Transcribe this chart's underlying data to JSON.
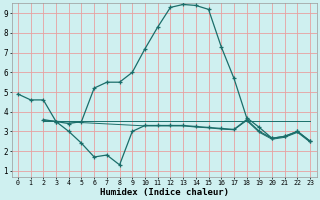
{
  "background_color": "#cff0f0",
  "grid_color": "#e8a0a0",
  "line_color": "#1a6e6a",
  "xlabel": "Humidex (Indice chaleur)",
  "xlim": [
    -0.5,
    23.5
  ],
  "ylim": [
    0.7,
    9.5
  ],
  "yticks": [
    1,
    2,
    3,
    4,
    5,
    6,
    7,
    8,
    9
  ],
  "xticks": [
    0,
    1,
    2,
    3,
    4,
    5,
    6,
    7,
    8,
    9,
    10,
    11,
    12,
    13,
    14,
    15,
    16,
    17,
    18,
    19,
    20,
    21,
    22,
    23
  ],
  "line1_x": [
    0,
    1,
    2,
    3,
    4,
    5,
    6,
    7,
    8,
    9,
    10,
    11,
    12,
    13,
    14,
    15,
    16,
    17,
    18,
    19,
    20,
    21,
    22,
    23
  ],
  "line1_y": [
    4.9,
    4.6,
    4.6,
    3.5,
    3.4,
    3.5,
    5.2,
    5.5,
    5.5,
    6.0,
    7.2,
    8.3,
    9.3,
    9.45,
    9.4,
    9.2,
    7.3,
    5.7,
    3.7,
    3.2,
    2.65,
    2.75,
    3.0,
    2.5
  ],
  "line2_x": [
    2,
    3,
    4,
    5,
    6,
    7,
    8,
    9,
    10,
    11,
    12,
    13,
    14,
    15,
    16,
    17,
    18,
    19,
    20,
    21,
    22,
    23
  ],
  "line2_y": [
    3.6,
    3.5,
    3.0,
    2.4,
    1.7,
    1.8,
    1.3,
    3.0,
    3.3,
    3.3,
    3.3,
    3.3,
    3.25,
    3.2,
    3.15,
    3.1,
    3.6,
    3.0,
    2.65,
    2.75,
    3.0,
    2.5
  ],
  "line3_x": [
    2,
    10,
    11,
    12,
    13,
    14,
    15,
    16,
    17,
    18,
    19,
    20,
    21,
    22,
    23
  ],
  "line3_y": [
    3.55,
    3.28,
    3.28,
    3.28,
    3.28,
    3.22,
    3.18,
    3.12,
    3.08,
    3.55,
    2.95,
    2.6,
    2.7,
    2.95,
    2.45
  ],
  "line4_x": [
    2,
    23
  ],
  "line4_y": [
    3.52,
    3.52
  ]
}
